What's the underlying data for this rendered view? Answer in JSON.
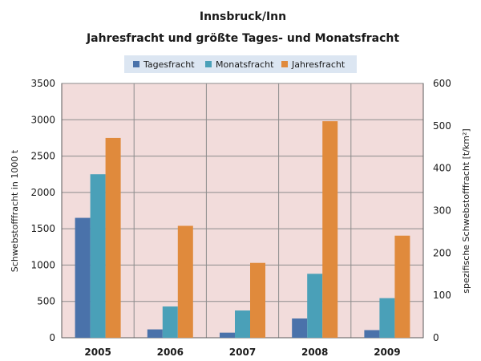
{
  "chart_data": {
    "type": "bar",
    "title": "Innsbruck/Inn",
    "subtitle": "Jahresfracht und größte Tages- und Monatsfracht",
    "categories": [
      "2005",
      "2006",
      "2007",
      "2008",
      "2009"
    ],
    "series": [
      {
        "name": "Tagesfracht",
        "values": [
          1650,
          115,
          70,
          265,
          105
        ],
        "color": "#4a72aa"
      },
      {
        "name": "Monatsfracht",
        "values": [
          2250,
          430,
          375,
          880,
          545
        ],
        "color": "#4aa0b8"
      },
      {
        "name": "Jahresfracht",
        "values": [
          2750,
          1540,
          1030,
          2980,
          1405
        ],
        "color": "#e08a3c"
      }
    ],
    "ylabel": "Schwebstofffracht in 1000 t",
    "y2label": "spezifische Schwebstofffracht  [t/km²]",
    "ylim": [
      0,
      3500
    ],
    "y2lim": [
      0,
      600
    ],
    "yticks": [
      "0",
      "500",
      "1000",
      "1500",
      "2000",
      "2500",
      "3000",
      "3500"
    ],
    "y2ticks": [
      "0",
      "100",
      "200",
      "300",
      "400",
      "500",
      "600"
    ],
    "grid": true,
    "legend_position": "top",
    "plot_background": "#f2dcdb",
    "legend_background": "#dce6f2"
  }
}
